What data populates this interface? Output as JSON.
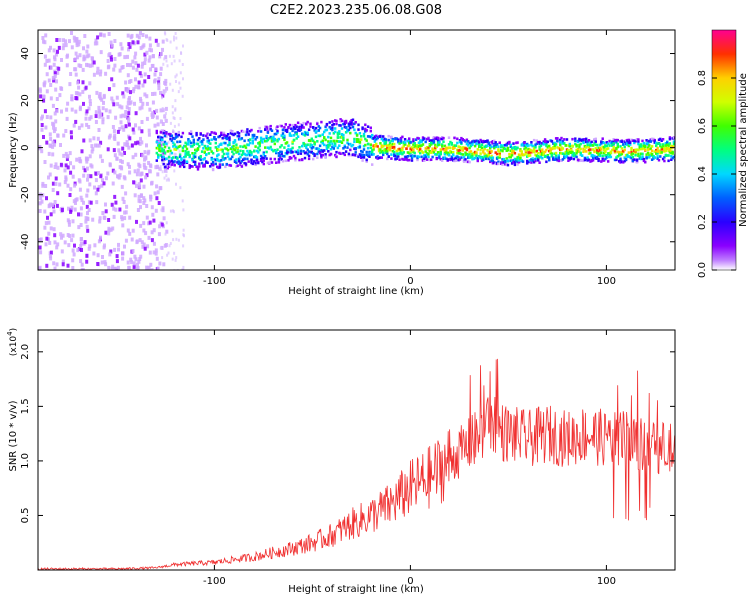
{
  "figure_title": "C2E2.2023.235.06.08.G08",
  "colors": {
    "snr_line": "#f03030",
    "colormap": [
      "#ffffff",
      "#8a00ff",
      "#2a00ff",
      "#0060ff",
      "#00d8ff",
      "#00ff80",
      "#40ff00",
      "#d0ff00",
      "#ffd000",
      "#ff6a00",
      "#ff0000",
      "#ff00aa"
    ]
  },
  "chart_data": [
    {
      "type": "heatmap",
      "xlabel": "Height of straight line (km)",
      "ylabel": "Frequency (Hz)",
      "xlim": [
        -190,
        135
      ],
      "ylim": [
        -52,
        50
      ],
      "xticks": [
        -100,
        0,
        100
      ],
      "yticks": [
        -40,
        -20,
        0,
        20,
        40
      ],
      "colorbar": {
        "label": "Normalized spectral amplitude",
        "range": [
          0.0,
          1.0
        ],
        "ticks": [
          0.0,
          0.2,
          0.4,
          0.6,
          0.8
        ]
      },
      "description_points": {
        "noise_region_x": [
          -190,
          -125
        ],
        "signal_center_freq": [
          [
            -130,
            0
          ],
          [
            -100,
            -1
          ],
          [
            -60,
            3
          ],
          [
            -30,
            5
          ],
          [
            -20,
            1
          ],
          [
            0,
            0
          ],
          [
            20,
            0
          ],
          [
            50,
            -2
          ],
          [
            80,
            0
          ],
          [
            110,
            -1
          ],
          [
            135,
            0
          ]
        ]
      }
    },
    {
      "type": "line",
      "xlabel": "Height of straight line (km)",
      "ylabel": "SNR (10 * v/v)",
      "y_scale_label": "(x10",
      "y_scale_exponent": "4",
      "xlim": [
        -190,
        135
      ],
      "ylim": [
        0,
        2.2
      ],
      "xticks": [
        -100,
        0,
        100
      ],
      "yticks": [
        0.5,
        1.0,
        1.5,
        2.0
      ],
      "series": [
        {
          "x": [
            -190,
            -150,
            -130,
            -120,
            -100,
            -80,
            -60,
            -50,
            -40,
            -30,
            -20,
            -10,
            0,
            10,
            20,
            30,
            40,
            50,
            60,
            70,
            80,
            90,
            100,
            110,
            120,
            135
          ],
          "values": [
            0.01,
            0.01,
            0.02,
            0.05,
            0.07,
            0.12,
            0.2,
            0.25,
            0.32,
            0.42,
            0.5,
            0.6,
            0.75,
            0.85,
            1.0,
            1.15,
            1.3,
            1.25,
            1.2,
            1.25,
            1.2,
            1.25,
            1.2,
            1.2,
            1.15,
            1.1
          ]
        }
      ]
    }
  ]
}
